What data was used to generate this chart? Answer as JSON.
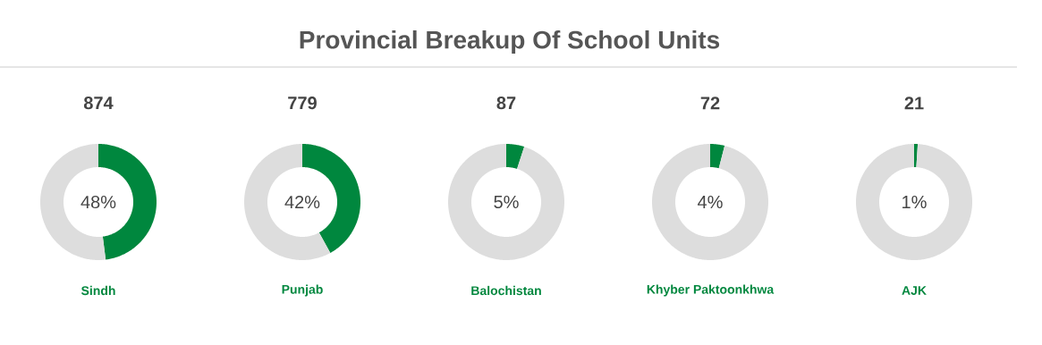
{
  "chart_data": [
    {
      "type": "other",
      "title": "Provincial Breakup Of School Units"
    },
    {
      "type": "donut",
      "title": "874",
      "xlabel": "Sindh",
      "categories": [
        null,
        null
      ],
      "values": [
        48,
        52
      ],
      "colors": [
        "#00873e",
        "#dddddd"
      ],
      "annotations": [
        "48%"
      ]
    },
    {
      "type": "donut",
      "title": "779",
      "xlabel": "Punjab",
      "categories": [
        null,
        null
      ],
      "values": [
        42,
        58
      ],
      "colors": [
        "#00873e",
        "#dddddd"
      ],
      "annotations": [
        "42%"
      ]
    },
    {
      "type": "donut",
      "title": "87",
      "xlabel": "Balochistan",
      "categories": [
        null,
        null
      ],
      "values": [
        5,
        95
      ],
      "colors": [
        "#00873e",
        "#dddddd"
      ],
      "annotations": [
        "5%"
      ]
    },
    {
      "type": "donut",
      "title": "72",
      "xlabel": "Khyber Paktoonkhwa",
      "categories": [
        null,
        null
      ],
      "values": [
        4,
        96
      ],
      "colors": [
        "#00873e",
        "#dddddd"
      ],
      "annotations": [
        "4%"
      ]
    },
    {
      "type": "donut",
      "title": "21",
      "xlabel": "AJK",
      "categories": [
        null,
        null
      ],
      "values": [
        1,
        99
      ],
      "colors": [
        "#00873e",
        "#dddddd"
      ],
      "annotations": [
        "1%"
      ]
    }
  ]
}
